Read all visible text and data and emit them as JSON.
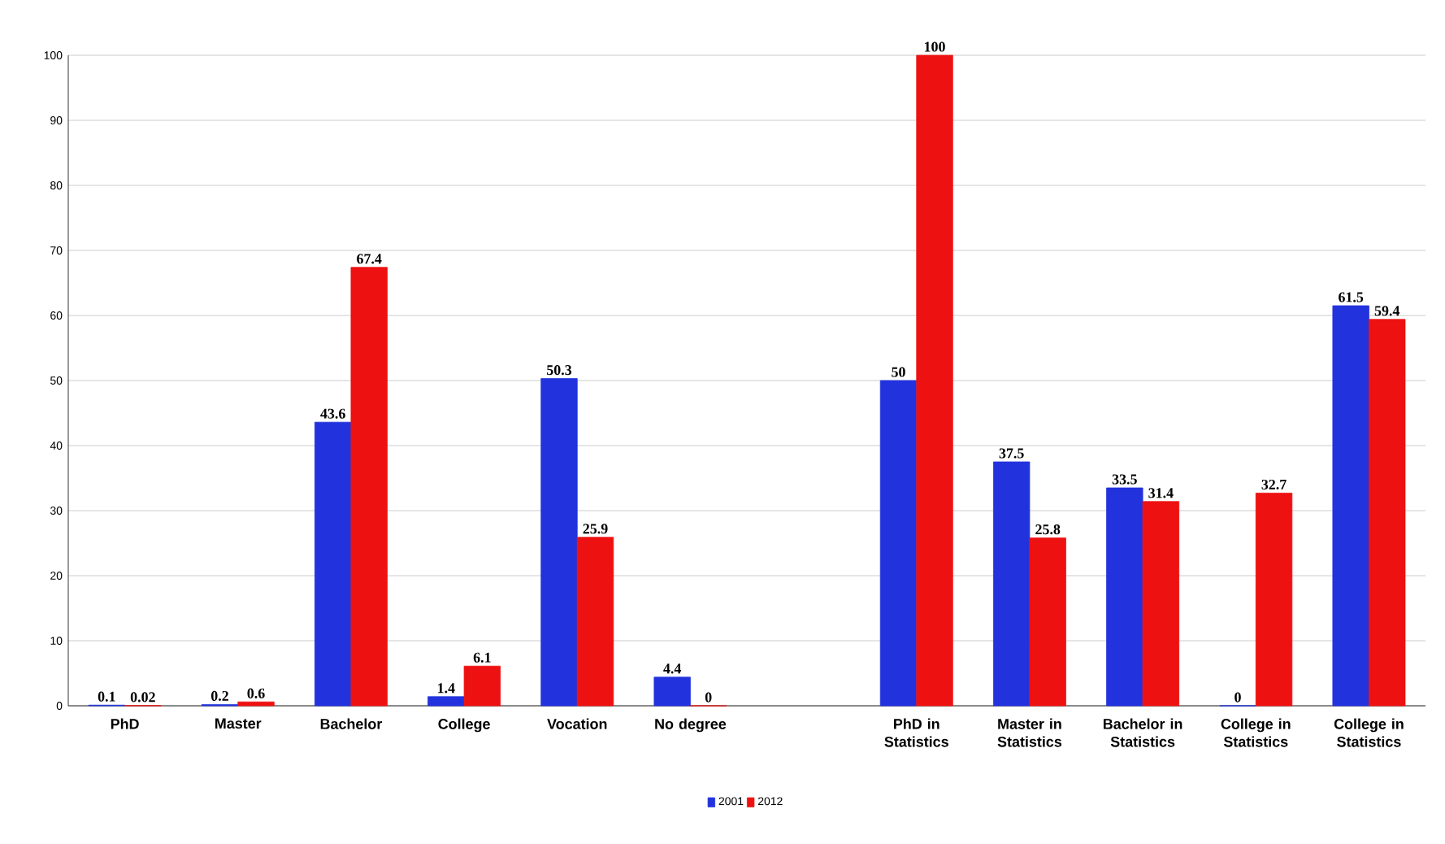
{
  "chart_data": {
    "type": "bar",
    "categories": [
      "PhD",
      "Master",
      "Bachelor",
      "College",
      "Vocation",
      "No degree",
      null,
      "PhD in Statistics",
      "Master in Statistics",
      "Bachelor in Statistics",
      "College in Statistics",
      "College in Statistics"
    ],
    "series": [
      {
        "name": "2001",
        "color": "#2233dd",
        "values": [
          0.1,
          0.2,
          43.6,
          1.4,
          50.3,
          4.4,
          null,
          50,
          37.5,
          33.5,
          0,
          61.5
        ]
      },
      {
        "name": "2012",
        "color": "#ee1111",
        "values": [
          0.02,
          0.6,
          67.4,
          6.1,
          25.9,
          0,
          null,
          100,
          25.8,
          31.4,
          32.7,
          59.4
        ]
      }
    ],
    "ylim": [
      0,
      100
    ],
    "yticks": [
      0,
      10,
      20,
      30,
      40,
      50,
      60,
      70,
      80,
      90,
      100
    ],
    "grid": "y",
    "legend": "bottom",
    "data_labels": true
  }
}
